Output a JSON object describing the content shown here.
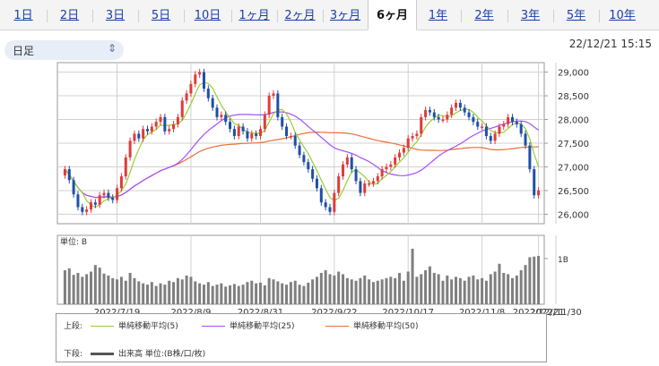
{
  "tabs": [
    "1日",
    "2日",
    "3日",
    "5日",
    "10日",
    "1ヶ月",
    "2ヶ月",
    "3ヶ月",
    "6ヶ月",
    "1年",
    "2年",
    "3年",
    "5年",
    "10年"
  ],
  "active_tab": "6ヶ月",
  "select": {
    "value": "日足"
  },
  "timestamp": "22/12/21 15:15",
  "legend": {
    "upper_label": "上段:",
    "lower_label": "下段:",
    "ma5": "単純移動平均(5)",
    "ma25": "単純移動平均(25)",
    "ma50": "単純移動平均(50)",
    "volume": "出来高 単位:(B株/口/枚)"
  },
  "colors": {
    "up": "#e03a3a",
    "down": "#1f4fa8",
    "ma5": "#9acd32",
    "ma25": "#a64dff",
    "ma50": "#e8703a",
    "volume": "#7f7f7f"
  },
  "chart_data": [
    {
      "type": "candlestick",
      "title": "",
      "x_tick_labels": [
        "2022/7/19",
        "2022/8/9",
        "2022/8/31",
        "2022/9/22",
        "2022/10/17",
        "2022/11/8",
        "2022/11/30",
        "2022/12/21"
      ],
      "y_tick_labels": [
        "29,000",
        "28,500",
        "28,000",
        "27,500",
        "27,000",
        "26,500",
        "26,000"
      ],
      "ylim": [
        25800,
        29200
      ],
      "grid": true,
      "series_summary": {
        "open_first": 26960,
        "close_last": 26390,
        "high": 29200,
        "low": 25800
      },
      "close": [
        26950,
        26720,
        26420,
        26150,
        26050,
        26100,
        26250,
        26200,
        26400,
        26450,
        26350,
        26300,
        26550,
        26800,
        27200,
        27550,
        27700,
        27600,
        27800,
        27750,
        27850,
        27950,
        28050,
        27750,
        27800,
        27900,
        28050,
        28400,
        28550,
        28750,
        28950,
        29000,
        28650,
        28450,
        28250,
        28050,
        28100,
        27950,
        27800,
        27650,
        27850,
        27750,
        27600,
        27700,
        27650,
        27800,
        28100,
        28500,
        28550,
        28050,
        27850,
        27650,
        27650,
        27450,
        27250,
        27100,
        26950,
        26750,
        26550,
        26250,
        26150,
        26050,
        26450,
        26800,
        27050,
        27200,
        26950,
        26700,
        26450,
        26650,
        26650,
        26700,
        26800,
        26950,
        27000,
        27050,
        27200,
        27300,
        27400,
        27600,
        27650,
        27700,
        28050,
        28200,
        28150,
        28050,
        28000,
        28000,
        28100,
        28250,
        28350,
        28250,
        28150,
        28050,
        27950,
        27850,
        27850,
        27650,
        27550,
        27700,
        27850,
        27900,
        28050,
        27950,
        27900,
        27700,
        27450,
        26950,
        26400,
        26500
      ],
      "open": [
        26820,
        26950,
        26720,
        26420,
        26150,
        26050,
        26100,
        26250,
        26200,
        26400,
        26450,
        26350,
        26300,
        26550,
        26800,
        27200,
        27550,
        27700,
        27600,
        27800,
        27750,
        27850,
        27950,
        28050,
        27750,
        27800,
        27900,
        28050,
        28400,
        28550,
        28750,
        28950,
        29000,
        28650,
        28450,
        28250,
        28050,
        28100,
        27950,
        27800,
        27650,
        27850,
        27750,
        27600,
        27700,
        27650,
        27800,
        28100,
        28500,
        28550,
        28050,
        27850,
        27650,
        27650,
        27450,
        27250,
        27100,
        26950,
        26750,
        26550,
        26250,
        26150,
        26050,
        26450,
        26800,
        27050,
        27200,
        26950,
        26700,
        26450,
        26650,
        26650,
        26700,
        26800,
        26950,
        27000,
        27050,
        27200,
        27300,
        27400,
        27600,
        27650,
        27700,
        28050,
        28200,
        28150,
        28050,
        28000,
        28000,
        28100,
        28250,
        28350,
        28250,
        28150,
        28050,
        27950,
        27850,
        27850,
        27650,
        27550,
        27700,
        27850,
        27900,
        28050,
        27950,
        27900,
        27700,
        27450,
        26950,
        26400
      ],
      "volume": [
        0.52,
        0.55,
        0.45,
        0.48,
        0.42,
        0.46,
        0.5,
        0.6,
        0.56,
        0.47,
        0.44,
        0.4,
        0.38,
        0.42,
        0.36,
        0.48,
        0.4,
        0.35,
        0.32,
        0.3,
        0.34,
        0.28,
        0.32,
        0.3,
        0.36,
        0.34,
        0.4,
        0.38,
        0.44,
        0.42,
        0.35,
        0.32,
        0.3,
        0.34,
        0.28,
        0.3,
        0.32,
        0.27,
        0.29,
        0.31,
        0.28,
        0.3,
        0.34,
        0.36,
        0.32,
        0.33,
        0.29,
        0.4,
        0.38,
        0.35,
        0.32,
        0.3,
        0.34,
        0.36,
        0.3,
        0.28,
        0.33,
        0.38,
        0.42,
        0.48,
        0.52,
        0.46,
        0.44,
        0.5,
        0.46,
        0.4,
        0.38,
        0.36,
        0.4,
        0.44,
        0.38,
        0.34,
        0.36,
        0.38,
        0.4,
        0.42,
        0.4,
        0.48,
        0.36,
        0.5,
        0.85,
        0.42,
        0.46,
        0.52,
        0.58,
        0.48,
        0.46,
        0.36,
        0.44,
        0.38,
        0.42,
        0.4,
        0.36,
        0.42,
        0.44,
        0.38,
        0.4,
        0.36,
        0.46,
        0.5,
        0.62,
        0.48,
        0.46,
        0.4,
        0.44,
        0.52,
        0.6,
        0.72,
        0.73,
        0.74
      ],
      "volume_tick_label": "1B",
      "volume_unit_label": "単位: B"
    }
  ]
}
